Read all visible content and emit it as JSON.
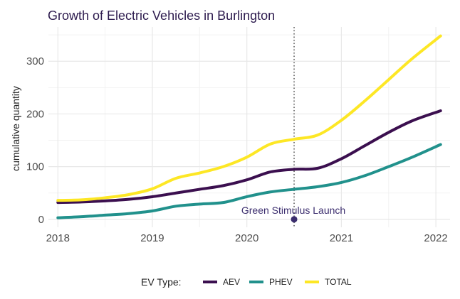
{
  "chart_data": {
    "type": "line",
    "title": "Growth of Electric Vehicles in Burlington",
    "xlabel": "",
    "ylabel": "cumulative quantity",
    "xlim": [
      2017.9,
      2022.15
    ],
    "ylim": [
      -15,
      365
    ],
    "x_ticks": [
      2018,
      2019,
      2020,
      2021,
      2022
    ],
    "y_ticks": [
      0,
      100,
      200,
      300
    ],
    "grid": true,
    "legend": {
      "title": "EV Type:",
      "position": "bottom"
    },
    "series": [
      {
        "name": "AEV",
        "color": "#3b0f4f",
        "x": [
          2018,
          2018.25,
          2018.5,
          2018.75,
          2019,
          2019.25,
          2019.5,
          2019.75,
          2020,
          2020.25,
          2020.5,
          2020.75,
          2021,
          2021.25,
          2021.5,
          2021.75,
          2022.05
        ],
        "y": [
          32,
          33,
          35,
          38,
          43,
          50,
          57,
          64,
          75,
          90,
          95,
          97,
          115,
          140,
          165,
          187,
          206
        ]
      },
      {
        "name": "PHEV",
        "color": "#21918c",
        "x": [
          2018,
          2018.25,
          2018.5,
          2018.75,
          2019,
          2019.25,
          2019.5,
          2019.75,
          2020,
          2020.25,
          2020.5,
          2020.75,
          2021,
          2021.25,
          2021.5,
          2021.75,
          2022.05
        ],
        "y": [
          3,
          5,
          8,
          11,
          16,
          25,
          29,
          32,
          43,
          52,
          57,
          62,
          70,
          83,
          100,
          118,
          142
        ]
      },
      {
        "name": "TOTAL",
        "color": "#fde725",
        "x": [
          2018,
          2018.25,
          2018.5,
          2018.75,
          2019,
          2019.25,
          2019.5,
          2019.75,
          2020,
          2020.25,
          2020.5,
          2020.75,
          2021,
          2021.25,
          2021.5,
          2021.75,
          2022.05
        ],
        "y": [
          36,
          37,
          41,
          47,
          58,
          78,
          88,
          100,
          118,
          143,
          152,
          160,
          188,
          225,
          265,
          305,
          348
        ]
      }
    ],
    "annotation": {
      "label": "Green Stimulus Launch",
      "x": 2020.5,
      "y": 0
    }
  }
}
